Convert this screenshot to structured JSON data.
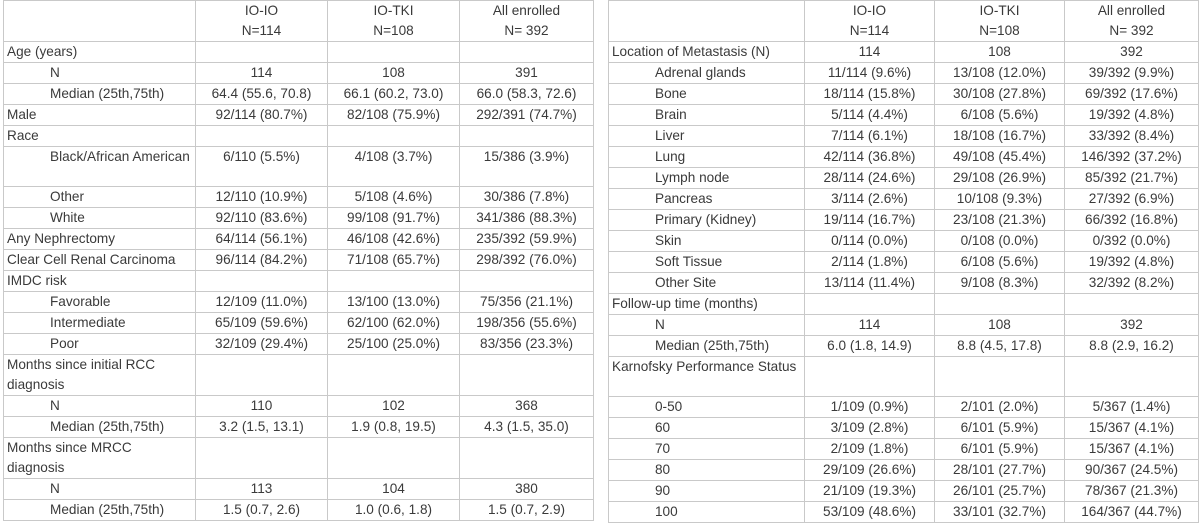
{
  "left_table": {
    "header": [
      "",
      "IO-IO\nN=114",
      "IO-TKI\nN=108",
      "All enrolled\nN= 392"
    ],
    "rows": [
      {
        "label": "Age (years)",
        "indent": false,
        "values": [
          "",
          "",
          ""
        ]
      },
      {
        "label": "N",
        "indent": true,
        "values": [
          "114",
          "108",
          "391"
        ]
      },
      {
        "label": "Median (25th,75th)",
        "indent": true,
        "values": [
          "64.4 (55.6, 70.8)",
          "66.1 (60.2, 73.0)",
          "66.0 (58.3, 72.6)"
        ]
      },
      {
        "label": "Male",
        "indent": false,
        "values": [
          "92/114 (80.7%)",
          "82/108 (75.9%)",
          "292/391 (74.7%)"
        ]
      },
      {
        "label": "Race",
        "indent": false,
        "values": [
          "",
          "",
          ""
        ]
      },
      {
        "label": "Black/African American",
        "indent": true,
        "tall": true,
        "values": [
          "6/110 (5.5%)",
          "4/108 (3.7%)",
          "15/386 (3.9%)"
        ]
      },
      {
        "label": "Other",
        "indent": true,
        "values": [
          "12/110 (10.9%)",
          "5/108 (4.6%)",
          "30/386 (7.8%)"
        ]
      },
      {
        "label": "White",
        "indent": true,
        "values": [
          "92/110 (83.6%)",
          "99/108 (91.7%)",
          "341/386 (88.3%)"
        ]
      },
      {
        "label": "Any Nephrectomy",
        "indent": false,
        "values": [
          "64/114 (56.1%)",
          "46/108 (42.6%)",
          "235/392 (59.9%)"
        ]
      },
      {
        "label": "Clear Cell Renal Carcinoma",
        "indent": false,
        "values": [
          "96/114 (84.2%)",
          "71/108 (65.7%)",
          "298/392 (76.0%)"
        ]
      },
      {
        "label": "IMDC risk",
        "indent": false,
        "values": [
          "",
          "",
          ""
        ]
      },
      {
        "label": "Favorable",
        "indent": true,
        "values": [
          "12/109 (11.0%)",
          "13/100 (13.0%)",
          "75/356 (21.1%)"
        ]
      },
      {
        "label": "Intermediate",
        "indent": true,
        "values": [
          "65/109 (59.6%)",
          "62/100 (62.0%)",
          "198/356 (55.6%)"
        ]
      },
      {
        "label": "Poor",
        "indent": true,
        "values": [
          "32/109 (29.4%)",
          "25/100 (25.0%)",
          "83/356 (23.3%)"
        ]
      },
      {
        "label": "Months since initial RCC diagnosis",
        "indent": false,
        "tall": true,
        "values": [
          "",
          "",
          ""
        ]
      },
      {
        "label": "N",
        "indent": true,
        "values": [
          "110",
          "102",
          "368"
        ]
      },
      {
        "label": "Median (25th,75th)",
        "indent": true,
        "values": [
          "3.2 (1.5, 13.1)",
          "1.9 (0.8, 19.5)",
          "4.3 (1.5, 35.0)"
        ]
      },
      {
        "label": "Months since MRCC diagnosis",
        "indent": false,
        "tall": true,
        "values": [
          "",
          "",
          ""
        ]
      },
      {
        "label": "N",
        "indent": true,
        "values": [
          "113",
          "104",
          "380"
        ]
      },
      {
        "label": "Median (25th,75th)",
        "indent": true,
        "values": [
          "1.5 (0.7, 2.6)",
          "1.0 (0.6, 1.8)",
          "1.5 (0.7, 2.9)"
        ]
      }
    ]
  },
  "right_table": {
    "header": [
      "",
      "IO-IO\nN=114",
      "IO-TKI\nN=108",
      "All enrolled\nN= 392"
    ],
    "rows": [
      {
        "label": "Location of Metastasis (N)",
        "indent": false,
        "values": [
          "114",
          "108",
          "392"
        ]
      },
      {
        "label": "Adrenal glands",
        "indent": true,
        "values": [
          "11/114 (9.6%)",
          "13/108 (12.0%)",
          "39/392 (9.9%)"
        ]
      },
      {
        "label": "Bone",
        "indent": true,
        "values": [
          "18/114 (15.8%)",
          "30/108 (27.8%)",
          "69/392 (17.6%)"
        ]
      },
      {
        "label": "Brain",
        "indent": true,
        "values": [
          "5/114 (4.4%)",
          "6/108 (5.6%)",
          "19/392 (4.8%)"
        ]
      },
      {
        "label": "Liver",
        "indent": true,
        "values": [
          "7/114 (6.1%)",
          "18/108 (16.7%)",
          "33/392 (8.4%)"
        ]
      },
      {
        "label": "Lung",
        "indent": true,
        "values": [
          "42/114 (36.8%)",
          "49/108 (45.4%)",
          "146/392 (37.2%)"
        ]
      },
      {
        "label": "Lymph node",
        "indent": true,
        "values": [
          "28/114 (24.6%)",
          "29/108 (26.9%)",
          "85/392 (21.7%)"
        ]
      },
      {
        "label": "Pancreas",
        "indent": true,
        "values": [
          "3/114 (2.6%)",
          "10/108 (9.3%)",
          "27/392 (6.9%)"
        ]
      },
      {
        "label": "Primary (Kidney)",
        "indent": true,
        "values": [
          "19/114 (16.7%)",
          "23/108 (21.3%)",
          "66/392 (16.8%)"
        ]
      },
      {
        "label": "Skin",
        "indent": true,
        "values": [
          "0/114 (0.0%)",
          "0/108 (0.0%)",
          "0/392 (0.0%)"
        ]
      },
      {
        "label": "Soft Tissue",
        "indent": true,
        "values": [
          "2/114 (1.8%)",
          "6/108 (5.6%)",
          "19/392 (4.8%)"
        ]
      },
      {
        "label": "Other Site",
        "indent": true,
        "values": [
          "13/114 (11.4%)",
          "9/108 (8.3%)",
          "32/392 (8.2%)"
        ]
      },
      {
        "label": "Follow-up time (months)",
        "indent": false,
        "values": [
          "",
          "",
          ""
        ]
      },
      {
        "label": "N",
        "indent": true,
        "values": [
          "114",
          "108",
          "392"
        ]
      },
      {
        "label": "Median (25th,75th)",
        "indent": true,
        "values": [
          "6.0 (1.8, 14.9)",
          "8.8 (4.5, 17.8)",
          "8.8 (2.9, 16.2)"
        ]
      },
      {
        "label": "Karnofsky Performance Status",
        "indent": false,
        "tall": true,
        "values": [
          "",
          "",
          ""
        ]
      },
      {
        "label": "0-50",
        "indent": true,
        "values": [
          "1/109 (0.9%)",
          "2/101 (2.0%)",
          "5/367 (1.4%)"
        ]
      },
      {
        "label": "60",
        "indent": true,
        "values": [
          "3/109 (2.8%)",
          "6/101 (5.9%)",
          "15/367 (4.1%)"
        ]
      },
      {
        "label": "70",
        "indent": true,
        "values": [
          "2/109 (1.8%)",
          "6/101 (5.9%)",
          "15/367 (4.1%)"
        ]
      },
      {
        "label": "80",
        "indent": true,
        "values": [
          "29/109 (26.6%)",
          "28/101 (27.7%)",
          "90/367 (24.5%)"
        ]
      },
      {
        "label": "90",
        "indent": true,
        "values": [
          "21/109 (19.3%)",
          "26/101 (25.7%)",
          "78/367 (21.3%)"
        ]
      },
      {
        "label": "100",
        "indent": true,
        "values": [
          "53/109 (48.6%)",
          "33/101 (32.7%)",
          "164/367 (44.7%)"
        ]
      }
    ]
  }
}
